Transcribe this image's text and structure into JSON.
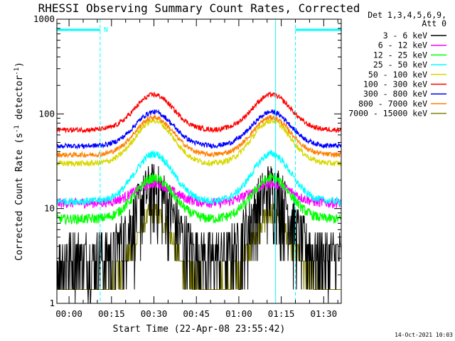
{
  "chart_data": {
    "type": "line",
    "title": "RHESSI Observing Summary Count Rates, Corrected",
    "xlabel": "Start Time (22-Apr-08 23:55:42)",
    "ylabel_main": "Corrected Count Rate (s",
    "ylabel_sup1": "-1",
    "ylabel_mid": " detector",
    "ylabel_sup2": "-1",
    "ylabel_end": ")",
    "yscale": "log",
    "ylim": [
      1,
      1000
    ],
    "xlim_minutes": [
      -4.3,
      96.2
    ],
    "x_ticks": [
      {
        "min": 0,
        "label": "00:00"
      },
      {
        "min": 15,
        "label": "00:15"
      },
      {
        "min": 30,
        "label": "00:30"
      },
      {
        "min": 45,
        "label": "00:45"
      },
      {
        "min": 60,
        "label": "01:00"
      },
      {
        "min": 75,
        "label": "01:15"
      },
      {
        "min": 90,
        "label": "01:30"
      }
    ],
    "y_ticks": [
      {
        "v": 1,
        "label": "1"
      },
      {
        "v": 10,
        "label": "10"
      },
      {
        "v": 100,
        "label": "100"
      },
      {
        "v": 1000,
        "label": "1000"
      }
    ],
    "legend_header": [
      "Det 1,3,4,5,6,9,",
      "Att 0"
    ],
    "legend_placement": "right",
    "series": [
      {
        "name": "3 - 6 keV",
        "color": "#000000",
        "base": 3.1,
        "peak": 17,
        "noise": 0.8,
        "quantized": true
      },
      {
        "name": "6 - 12 keV",
        "color": "#ff00ff",
        "base": 11.5,
        "peak": 18.5,
        "noise": 0.12
      },
      {
        "name": "12 - 25 keV",
        "color": "#00ff00",
        "base": 7.8,
        "peak": 21,
        "noise": 0.12
      },
      {
        "name": "25 - 50 keV",
        "color": "#00ffff",
        "base": 12,
        "peak": 38,
        "noise": 0.09
      },
      {
        "name": "50 - 100 keV",
        "color": "#d8d800",
        "base": 30,
        "peak": 85,
        "noise": 0.07
      },
      {
        "name": "100 - 300 keV",
        "color": "#ff0000",
        "base": 68,
        "peak": 160,
        "noise": 0.06
      },
      {
        "name": "300 - 800 keV",
        "color": "#0000ff",
        "base": 46,
        "peak": 105,
        "noise": 0.06
      },
      {
        "name": "800 - 7000 keV",
        "color": "#ff8000",
        "base": 37,
        "peak": 92,
        "noise": 0.06
      },
      {
        "name": "7000 - 15000 keV",
        "color": "#808000",
        "base": 1.6,
        "peak": 9,
        "noise": 0.3,
        "quantized": true
      }
    ],
    "peaks_minutes": [
      30,
      71.5
    ],
    "annotations": {
      "saa_segments_minutes": [
        [
          -4.3,
          11
        ],
        [
          80,
          96.2
        ]
      ],
      "saa_marker": "N",
      "night_lines_minutes": [
        -4.3,
        11,
        73,
        80,
        96.2
      ]
    },
    "timestamp": "14-Oct-2021 10:03"
  }
}
